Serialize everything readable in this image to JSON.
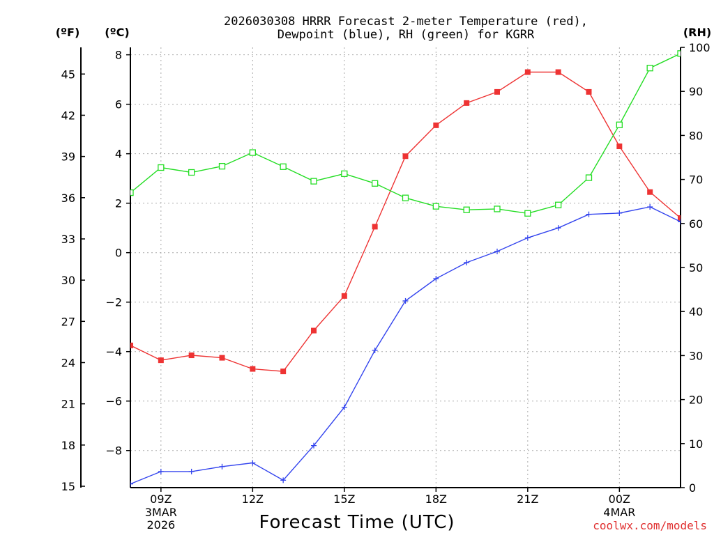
{
  "chart_data": {
    "type": "line",
    "title": [
      "2026030308 HRRR Forecast 2-meter Temperature (red),",
      "Dewpoint (blue), RH (green) for KGRR"
    ],
    "xlabel": "Forecast Time (UTC)",
    "credit": "coolwx.com/models",
    "unit_labels": {
      "fahrenheit": "(ºF)",
      "celsius": "(ºC)",
      "rh": "(RH)"
    },
    "x_ticks": [
      {
        "hour": 1,
        "label": "09Z",
        "sub": [
          "3MAR",
          "2026"
        ]
      },
      {
        "hour": 4,
        "label": "12Z",
        "sub": []
      },
      {
        "hour": 7,
        "label": "15Z",
        "sub": []
      },
      {
        "hour": 10,
        "label": "18Z",
        "sub": []
      },
      {
        "hour": 13,
        "label": "21Z",
        "sub": []
      },
      {
        "hour": 16,
        "label": "00Z",
        "sub": [
          "4MAR"
        ]
      }
    ],
    "xlim": [
      0,
      18
    ],
    "ylim_c": [
      -9.5,
      8.3
    ],
    "ylim_rh": [
      0,
      100
    ],
    "celsius_ticks": [
      -8,
      -6,
      -4,
      -2,
      0,
      2,
      4,
      6,
      8
    ],
    "fahrenheit_ticks": [
      15,
      18,
      21,
      24,
      27,
      30,
      33,
      36,
      39,
      42,
      45
    ],
    "rh_ticks": [
      0,
      10,
      20,
      30,
      40,
      50,
      60,
      70,
      80,
      90,
      100
    ],
    "x_hours": [
      0,
      1,
      2,
      3,
      4,
      5,
      6,
      7,
      8,
      9,
      10,
      11,
      12,
      13,
      14,
      15,
      16,
      17,
      18
    ],
    "series": [
      {
        "name": "Temperature",
        "units": "C",
        "color": "#ee3333",
        "marker": "filled-square",
        "values": [
          -3.75,
          -4.35,
          -4.15,
          -4.25,
          -4.7,
          -4.8,
          -3.15,
          -1.75,
          1.05,
          3.9,
          5.15,
          6.05,
          6.5,
          7.3,
          7.3,
          6.5,
          4.3,
          2.45,
          1.4
        ]
      },
      {
        "name": "Dewpoint",
        "units": "C",
        "color": "#3344ee",
        "marker": "plus",
        "values": [
          -9.35,
          -8.85,
          -8.85,
          -8.65,
          -8.5,
          -9.2,
          -7.8,
          -6.25,
          -3.95,
          -1.95,
          -1.05,
          -0.4,
          0.05,
          0.6,
          1.0,
          1.55,
          1.6,
          1.85,
          1.25
        ]
      },
      {
        "name": "RH",
        "units": "%",
        "color": "#22dd22",
        "marker": "open-square",
        "values": [
          67,
          72.7,
          71.6,
          73,
          76.1,
          72.9,
          69.6,
          71.3,
          69.1,
          65.8,
          63.9,
          63.1,
          63.3,
          62.3,
          64.2,
          70.4,
          82.4,
          95.3,
          98.6
        ]
      }
    ]
  }
}
